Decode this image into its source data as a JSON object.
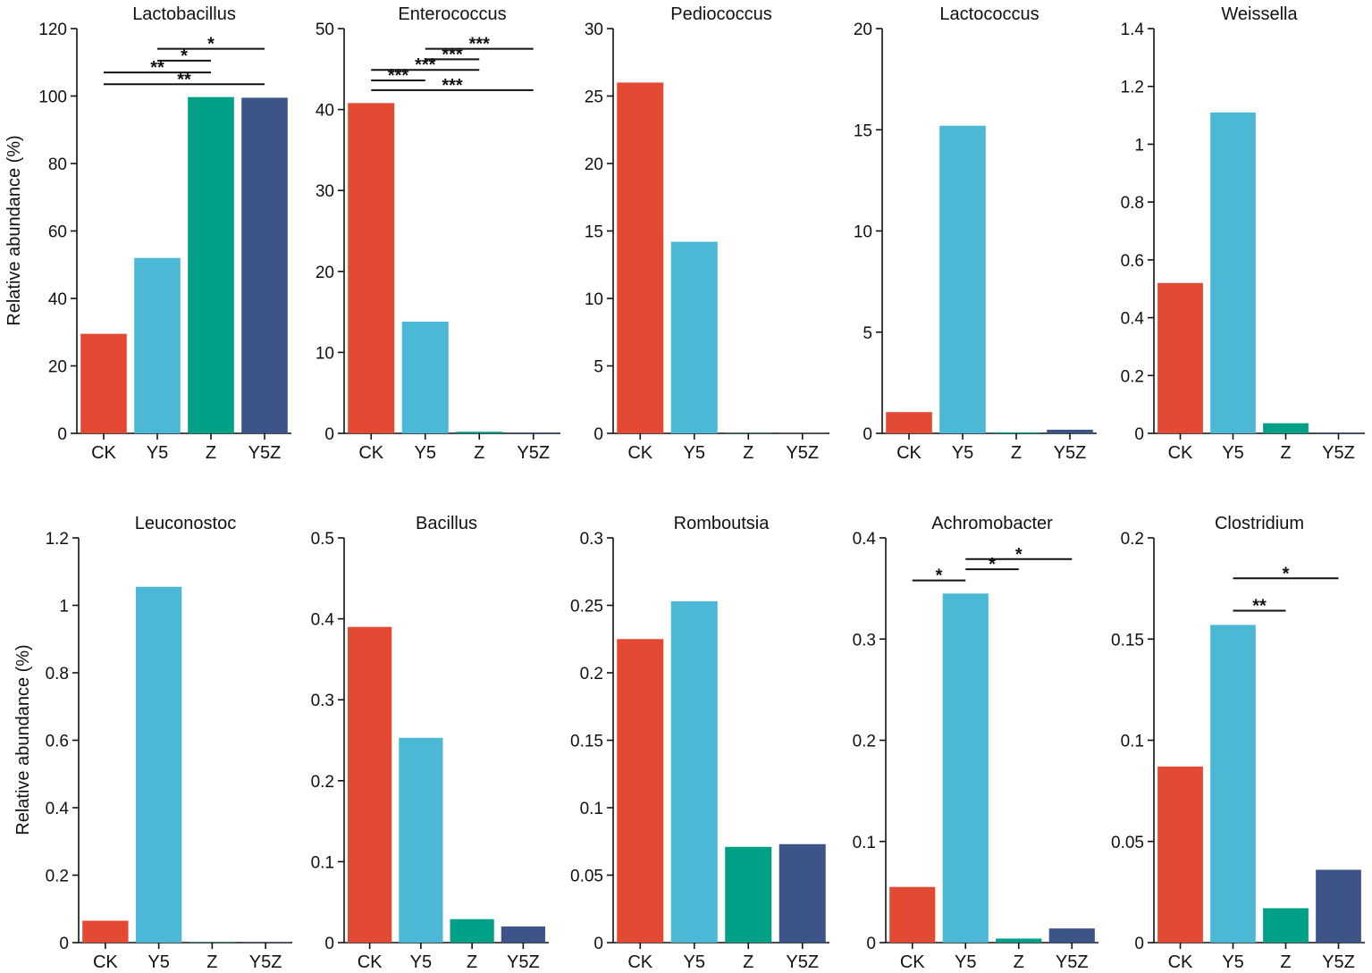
{
  "figure": {
    "y_axis_label": "Relative abundance (%)",
    "colors": {
      "CK": "#e34a33",
      "Y5": "#4bb8d6",
      "Z": "#00a087",
      "Y5Z": "#3c5488"
    }
  },
  "chart_data": [
    {
      "type": "bar",
      "title": "Lactobacillus",
      "categories": [
        "CK",
        "Y5",
        "Z",
        "Y5Z"
      ],
      "values": [
        29.5,
        52,
        99.7,
        99.5
      ],
      "ylim": [
        0,
        120
      ],
      "ticks": [
        0,
        20,
        40,
        60,
        80,
        100,
        120
      ],
      "significance": [
        {
          "from": 1,
          "to": 3,
          "label": "*",
          "y": 114
        },
        {
          "from": 1,
          "to": 2,
          "label": "*",
          "y": 110.5
        },
        {
          "from": 0,
          "to": 2,
          "label": "**",
          "y": 107
        },
        {
          "from": 0,
          "to": 3,
          "label": "**",
          "y": 103.5
        }
      ]
    },
    {
      "type": "bar",
      "title": "Enterococcus",
      "categories": [
        "CK",
        "Y5",
        "Z",
        "Y5Z"
      ],
      "values": [
        40.8,
        13.8,
        0.2,
        0.1
      ],
      "ylim": [
        0,
        50
      ],
      "ticks": [
        0,
        10,
        20,
        30,
        40,
        50
      ],
      "significance": [
        {
          "from": 1,
          "to": 3,
          "label": "***",
          "y": 47.5
        },
        {
          "from": 1,
          "to": 2,
          "label": "***",
          "y": 46.2
        },
        {
          "from": 0,
          "to": 2,
          "label": "***",
          "y": 44.9
        },
        {
          "from": 0,
          "to": 1,
          "label": "***",
          "y": 43.6
        },
        {
          "from": 0,
          "to": 3,
          "label": "***",
          "y": 42.4
        }
      ]
    },
    {
      "type": "bar",
      "title": "Pediococcus",
      "categories": [
        "CK",
        "Y5",
        "Z",
        "Y5Z"
      ],
      "values": [
        26,
        14.2,
        0.02,
        0.02
      ],
      "ylim": [
        0,
        30
      ],
      "ticks": [
        0,
        5,
        10,
        15,
        20,
        25,
        30
      ],
      "significance": []
    },
    {
      "type": "bar",
      "title": "Lactococcus",
      "categories": [
        "CK",
        "Y5",
        "Z",
        "Y5Z"
      ],
      "values": [
        1.05,
        15.2,
        0.05,
        0.18
      ],
      "ylim": [
        0,
        20
      ],
      "ticks": [
        0,
        5,
        10,
        15,
        20
      ],
      "significance": []
    },
    {
      "type": "bar",
      "title": "Weissella",
      "categories": [
        "CK",
        "Y5",
        "Z",
        "Y5Z"
      ],
      "values": [
        0.52,
        1.11,
        0.035,
        0.003
      ],
      "ylim": [
        0,
        1.4
      ],
      "ticks": [
        0,
        0.2,
        0.4,
        0.6,
        0.8,
        1,
        1.2,
        1.4
      ],
      "significance": []
    },
    {
      "type": "bar",
      "title": "Leuconostoc",
      "categories": [
        "CK",
        "Y5",
        "Z",
        "Y5Z"
      ],
      "values": [
        0.065,
        1.055,
        0.001,
        0.001
      ],
      "ylim": [
        0,
        1.2
      ],
      "ticks": [
        0,
        0.2,
        0.4,
        0.6,
        0.8,
        1,
        1.2
      ],
      "significance": []
    },
    {
      "type": "bar",
      "title": "Bacillus",
      "categories": [
        "CK",
        "Y5",
        "Z",
        "Y5Z"
      ],
      "values": [
        0.39,
        0.253,
        0.029,
        0.02
      ],
      "ylim": [
        0,
        0.5
      ],
      "ticks": [
        0,
        0.1,
        0.2,
        0.3,
        0.4,
        0.5
      ],
      "significance": []
    },
    {
      "type": "bar",
      "title": "Romboutsia",
      "categories": [
        "CK",
        "Y5",
        "Z",
        "Y5Z"
      ],
      "values": [
        0.225,
        0.253,
        0.071,
        0.073
      ],
      "ylim": [
        0,
        0.3
      ],
      "ticks": [
        0,
        0.05,
        0.1,
        0.15,
        0.2,
        0.25,
        0.3
      ],
      "significance": []
    },
    {
      "type": "bar",
      "title": "Achromobacter",
      "categories": [
        "CK",
        "Y5",
        "Z",
        "Y5Z"
      ],
      "values": [
        0.055,
        0.345,
        0.004,
        0.014
      ],
      "ylim": [
        0,
        0.4
      ],
      "ticks": [
        0,
        0.1,
        0.2,
        0.3,
        0.4
      ],
      "significance": [
        {
          "from": 1,
          "to": 3,
          "label": "*",
          "y": 0.379
        },
        {
          "from": 1,
          "to": 2,
          "label": "*",
          "y": 0.369
        },
        {
          "from": 0,
          "to": 1,
          "label": "*",
          "y": 0.358
        }
      ]
    },
    {
      "type": "bar",
      "title": "Clostridium",
      "categories": [
        "CK",
        "Y5",
        "Z",
        "Y5Z"
      ],
      "values": [
        0.087,
        0.157,
        0.017,
        0.036
      ],
      "ylim": [
        0,
        0.2
      ],
      "ticks": [
        0,
        0.05,
        0.1,
        0.15,
        0.2
      ],
      "significance": [
        {
          "from": 1,
          "to": 3,
          "label": "*",
          "y": 0.18
        },
        {
          "from": 1,
          "to": 2,
          "label": "**",
          "y": 0.164
        }
      ]
    }
  ]
}
